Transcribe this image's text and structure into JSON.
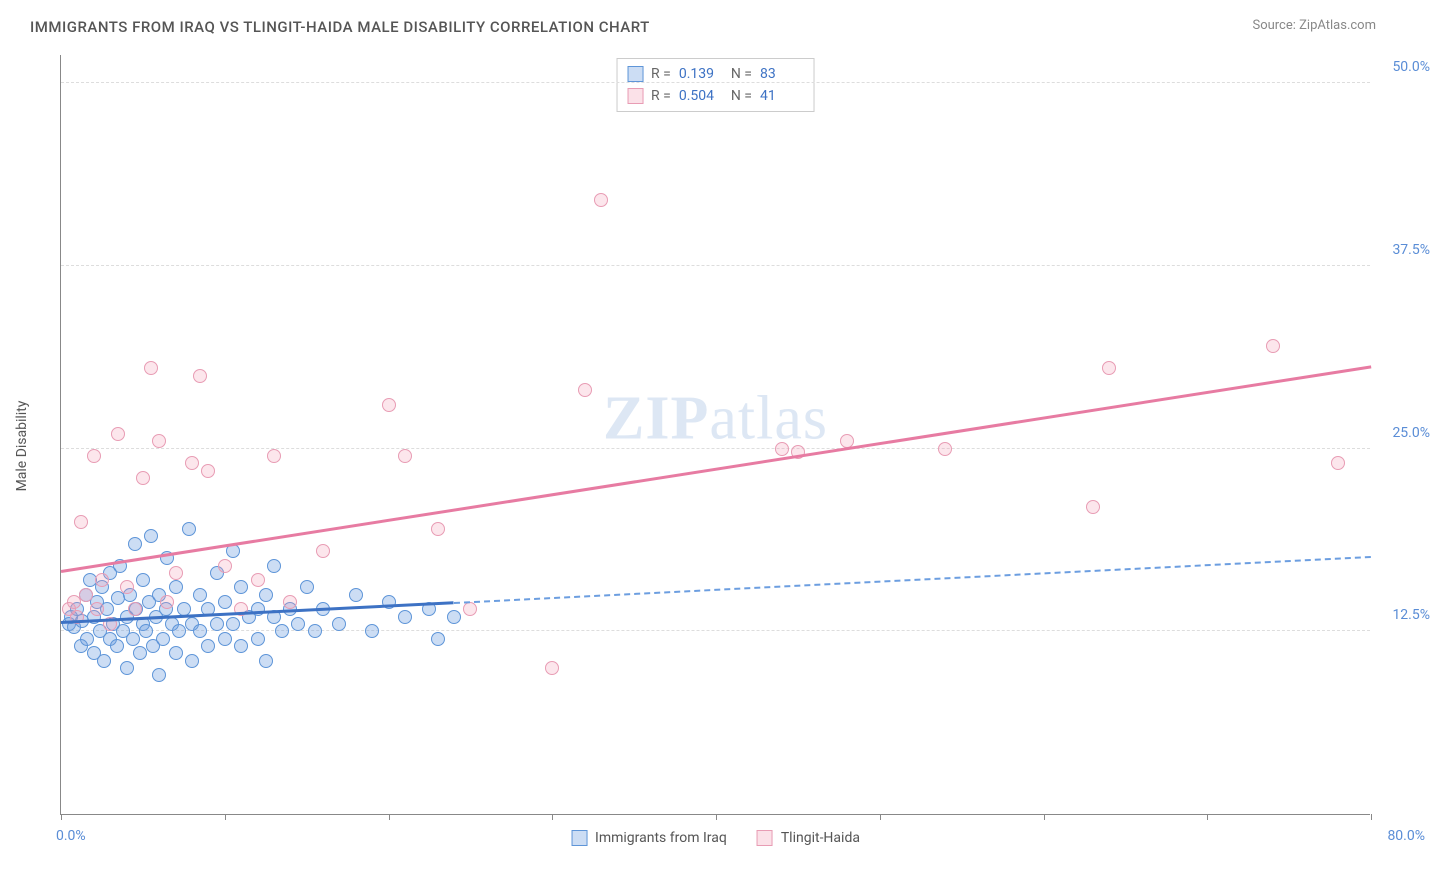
{
  "title": "IMMIGRANTS FROM IRAQ VS TLINGIT-HAIDA MALE DISABILITY CORRELATION CHART",
  "source": "Source: ZipAtlas.com",
  "y_axis_title": "Male Disability",
  "watermark_bold": "ZIP",
  "watermark_light": "atlas",
  "chart": {
    "type": "scatter",
    "xlim": [
      0,
      80
    ],
    "ylim": [
      0,
      52
    ],
    "x_min_label": "0.0%",
    "x_max_label": "80.0%",
    "x_ticks": [
      0,
      10,
      20,
      30,
      40,
      50,
      60,
      70,
      80
    ],
    "y_ticks": [
      {
        "v": 12.5,
        "label": "12.5%"
      },
      {
        "v": 25.0,
        "label": "25.0%"
      },
      {
        "v": 37.5,
        "label": "37.5%"
      },
      {
        "v": 50.0,
        "label": "50.0%"
      }
    ],
    "background_color": "#ffffff",
    "grid_color": "#dddddd",
    "series": [
      {
        "name": "Immigrants from Iraq",
        "color_fill": "rgba(108,158,224,0.35)",
        "color_stroke": "#5e95d8",
        "marker_size": 14,
        "trend": {
          "x1": 0,
          "y1": 13.0,
          "x2": 80,
          "y2": 17.5,
          "solid_until_x": 24,
          "color": "#3d72c4"
        },
        "R": "0.139",
        "N": "83",
        "points": [
          [
            0.5,
            13.0
          ],
          [
            0.6,
            13.5
          ],
          [
            0.8,
            12.8
          ],
          [
            1.0,
            14.0
          ],
          [
            1.2,
            11.5
          ],
          [
            1.3,
            13.2
          ],
          [
            1.5,
            15.0
          ],
          [
            1.6,
            12.0
          ],
          [
            1.8,
            16.0
          ],
          [
            2.0,
            13.5
          ],
          [
            2.0,
            11.0
          ],
          [
            2.2,
            14.5
          ],
          [
            2.4,
            12.5
          ],
          [
            2.5,
            15.5
          ],
          [
            2.6,
            10.5
          ],
          [
            2.8,
            14.0
          ],
          [
            3.0,
            12.0
          ],
          [
            3.0,
            16.5
          ],
          [
            3.2,
            13.0
          ],
          [
            3.4,
            11.5
          ],
          [
            3.5,
            14.8
          ],
          [
            3.6,
            17.0
          ],
          [
            3.8,
            12.5
          ],
          [
            4.0,
            13.5
          ],
          [
            4.0,
            10.0
          ],
          [
            4.2,
            15.0
          ],
          [
            4.4,
            12.0
          ],
          [
            4.5,
            18.5
          ],
          [
            4.6,
            14.0
          ],
          [
            4.8,
            11.0
          ],
          [
            5.0,
            13.0
          ],
          [
            5.0,
            16.0
          ],
          [
            5.2,
            12.5
          ],
          [
            5.4,
            14.5
          ],
          [
            5.5,
            19.0
          ],
          [
            5.6,
            11.5
          ],
          [
            5.8,
            13.5
          ],
          [
            6.0,
            15.0
          ],
          [
            6.0,
            9.5
          ],
          [
            6.2,
            12.0
          ],
          [
            6.4,
            14.0
          ],
          [
            6.5,
            17.5
          ],
          [
            6.8,
            13.0
          ],
          [
            7.0,
            11.0
          ],
          [
            7.0,
            15.5
          ],
          [
            7.2,
            12.5
          ],
          [
            7.5,
            14.0
          ],
          [
            7.8,
            19.5
          ],
          [
            8.0,
            13.0
          ],
          [
            8.0,
            10.5
          ],
          [
            8.5,
            12.5
          ],
          [
            8.5,
            15.0
          ],
          [
            9.0,
            14.0
          ],
          [
            9.0,
            11.5
          ],
          [
            9.5,
            13.0
          ],
          [
            9.5,
            16.5
          ],
          [
            10.0,
            12.0
          ],
          [
            10.0,
            14.5
          ],
          [
            10.5,
            13.0
          ],
          [
            10.5,
            18.0
          ],
          [
            11.0,
            11.5
          ],
          [
            11.0,
            15.5
          ],
          [
            11.5,
            13.5
          ],
          [
            12.0,
            12.0
          ],
          [
            12.0,
            14.0
          ],
          [
            12.5,
            15.0
          ],
          [
            12.5,
            10.5
          ],
          [
            13.0,
            13.5
          ],
          [
            13.0,
            17.0
          ],
          [
            13.5,
            12.5
          ],
          [
            14.0,
            14.0
          ],
          [
            14.5,
            13.0
          ],
          [
            15.0,
            15.5
          ],
          [
            15.5,
            12.5
          ],
          [
            16.0,
            14.0
          ],
          [
            17.0,
            13.0
          ],
          [
            18.0,
            15.0
          ],
          [
            19.0,
            12.5
          ],
          [
            20.0,
            14.5
          ],
          [
            21.0,
            13.5
          ],
          [
            22.5,
            14.0
          ],
          [
            23.0,
            12.0
          ],
          [
            24.0,
            13.5
          ]
        ]
      },
      {
        "name": "Tlingit-Haida",
        "color_fill": "rgba(242,154,180,0.25)",
        "color_stroke": "#e89cb4",
        "marker_size": 14,
        "trend": {
          "x1": 0,
          "y1": 16.5,
          "x2": 80,
          "y2": 30.5,
          "solid_until_x": 80,
          "color": "#e77ba2"
        },
        "R": "0.504",
        "N": "41",
        "points": [
          [
            0.5,
            14.0
          ],
          [
            0.8,
            14.5
          ],
          [
            1.0,
            13.5
          ],
          [
            1.2,
            20.0
          ],
          [
            1.5,
            15.0
          ],
          [
            2.0,
            24.5
          ],
          [
            2.2,
            14.0
          ],
          [
            2.5,
            16.0
          ],
          [
            3.0,
            13.0
          ],
          [
            3.5,
            26.0
          ],
          [
            4.0,
            15.5
          ],
          [
            4.5,
            14.0
          ],
          [
            5.0,
            23.0
          ],
          [
            5.5,
            30.5
          ],
          [
            6.0,
            25.5
          ],
          [
            6.5,
            14.5
          ],
          [
            7.0,
            16.5
          ],
          [
            8.0,
            24.0
          ],
          [
            8.5,
            30.0
          ],
          [
            9.0,
            23.5
          ],
          [
            10.0,
            17.0
          ],
          [
            11.0,
            14.0
          ],
          [
            12.0,
            16.0
          ],
          [
            13.0,
            24.5
          ],
          [
            14.0,
            14.5
          ],
          [
            16.0,
            18.0
          ],
          [
            20.0,
            28.0
          ],
          [
            21.0,
            24.5
          ],
          [
            23.0,
            19.5
          ],
          [
            25.0,
            14.0
          ],
          [
            30.0,
            10.0
          ],
          [
            32.0,
            29.0
          ],
          [
            33.0,
            42.0
          ],
          [
            44.0,
            25.0
          ],
          [
            45.0,
            24.8
          ],
          [
            48.0,
            25.5
          ],
          [
            54.0,
            25.0
          ],
          [
            63.0,
            21.0
          ],
          [
            64.0,
            30.5
          ],
          [
            74.0,
            32.0
          ],
          [
            78.0,
            24.0
          ]
        ]
      }
    ]
  },
  "legend_top": [
    {
      "swatch": "blue",
      "R": "0.139",
      "N": "83"
    },
    {
      "swatch": "pink",
      "R": "0.504",
      "N": "41"
    }
  ],
  "legend_bottom": [
    {
      "swatch": "blue",
      "label": "Immigrants from Iraq"
    },
    {
      "swatch": "pink",
      "label": "Tlingit-Haida"
    }
  ],
  "labels": {
    "R": "R  =",
    "N": "N  ="
  }
}
